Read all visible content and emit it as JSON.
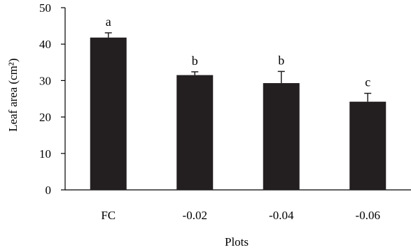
{
  "chart_data": {
    "type": "bar",
    "title": "",
    "xlabel": "Plots",
    "ylabel": "Leaf area (cm²)",
    "categories": [
      "FC",
      "-0.02",
      "-0.04",
      "-0.06"
    ],
    "values": [
      41.8,
      31.5,
      29.3,
      24.2
    ],
    "error": [
      1.3,
      0.9,
      3.2,
      2.3
    ],
    "significance_letters": [
      "a",
      "b",
      "b",
      "c"
    ],
    "ylim": [
      0,
      50
    ],
    "yticks": [
      "0",
      "10",
      "20",
      "30",
      "40",
      "50"
    ],
    "grid": false,
    "legend": "none",
    "bar_color": "#231f20"
  }
}
